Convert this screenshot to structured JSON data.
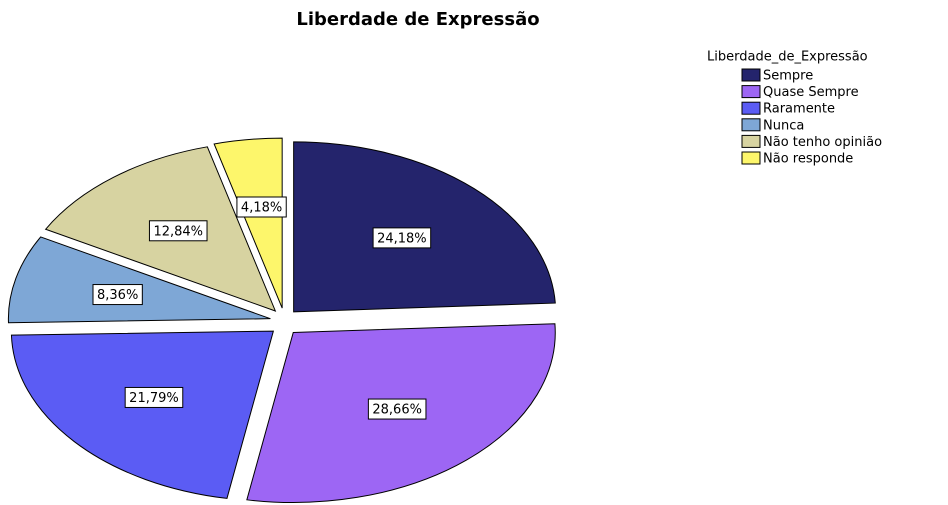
{
  "chart_data": {
    "type": "pie",
    "title": "Liberdade de Expressão",
    "legend_title": "Liberdade_de_Expressão",
    "categories": [
      "Sempre",
      "Quase Sempre",
      "Raramente",
      "Nunca",
      "Não tenho opinião",
      "Não responde"
    ],
    "values": [
      24.18,
      28.66,
      21.79,
      8.36,
      12.84,
      4.18
    ],
    "value_labels": [
      "24,18%",
      "28,66%",
      "21,79%",
      "8,36%",
      "12,84%",
      "4,18%"
    ],
    "colors": [
      "#24246c",
      "#9d66f4",
      "#5b5cf4",
      "#7ea7d6",
      "#d7d3a1",
      "#fdf66b"
    ],
    "legend": "top-right"
  }
}
